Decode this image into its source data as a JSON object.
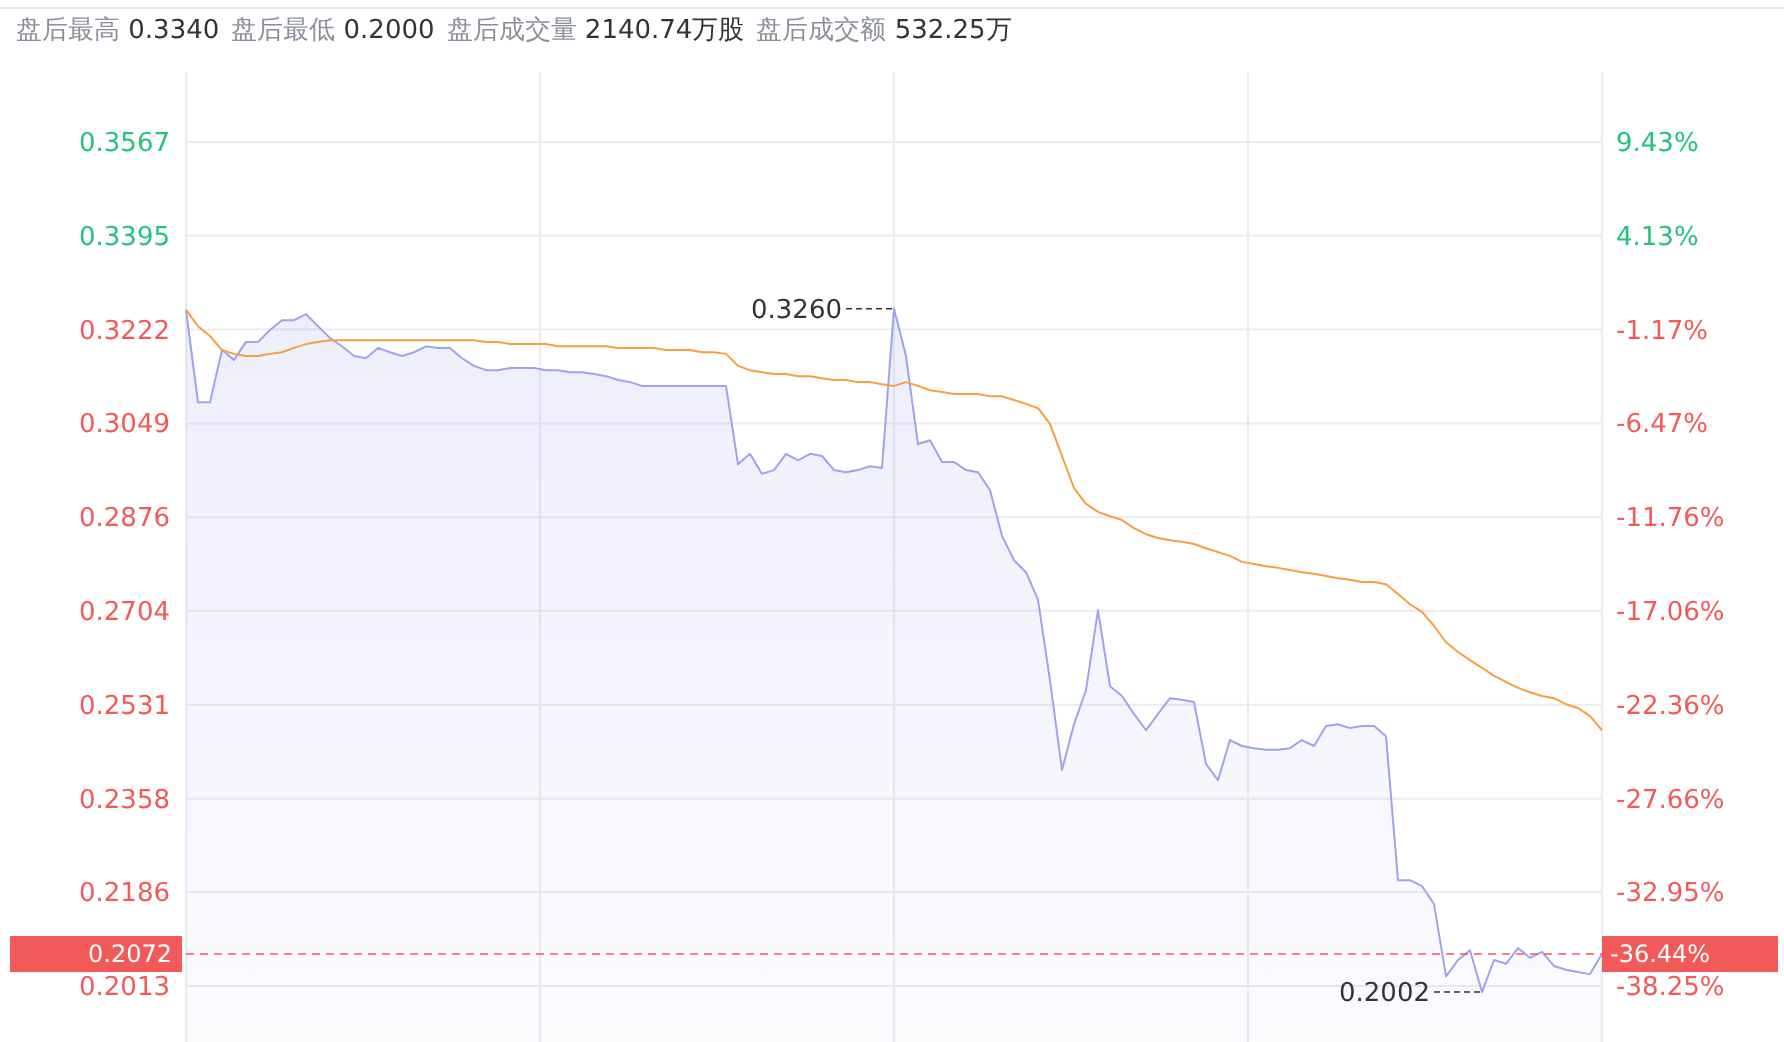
{
  "chart_data": {
    "type": "line",
    "annotations": [
      "盘后最高 0.3340",
      "盘后最低 0.2000",
      "盘后成交量 2140.74万股",
      "盘后成交额 532.25万",
      "0.3260",
      "0.2002",
      "-36.44%"
    ],
    "categories": [
      null,
      null,
      null,
      null,
      null,
      null,
      null,
      null,
      null,
      null,
      null,
      null,
      null,
      null,
      null,
      null,
      null,
      null,
      null,
      null,
      null,
      null,
      null,
      null,
      null,
      null,
      null,
      null,
      null,
      null,
      null,
      null,
      null,
      null,
      null,
      null,
      null,
      null,
      null,
      null,
      null,
      null,
      null,
      null,
      null,
      null,
      null,
      null,
      null,
      null,
      null,
      null,
      null,
      null,
      null,
      null,
      null,
      null,
      null,
      null,
      null,
      null,
      null,
      null,
      null,
      null,
      null,
      null,
      null,
      null,
      null,
      null,
      null,
      null,
      null,
      null,
      null,
      null,
      null,
      null,
      null,
      null,
      null,
      null,
      null,
      null,
      null,
      null,
      null,
      null,
      null,
      null,
      null,
      null,
      null,
      null,
      null,
      null,
      null,
      null,
      null,
      null,
      null,
      null,
      null,
      null,
      null,
      null,
      null,
      null,
      null,
      null,
      null,
      null,
      null,
      null,
      null,
      null,
      null
    ],
    "series": [
      {
        "type": "area",
        "color": "#9ea3ec",
        "values": [
          0.3258,
          0.3088,
          0.3088,
          0.3184,
          0.3166,
          0.3199,
          0.3199,
          0.3221,
          0.3239,
          0.3239,
          0.325,
          0.3228,
          0.3206,
          0.3191,
          0.3173,
          0.3169,
          0.3188,
          0.318,
          0.3173,
          0.318,
          0.3191,
          0.3188,
          0.3188,
          0.3169,
          0.3155,
          0.3147,
          0.3147,
          0.3151,
          0.3151,
          0.3151,
          0.3147,
          0.3147,
          0.3143,
          0.3143,
          0.314,
          0.3136,
          0.3129,
          0.3125,
          0.3118,
          0.3118,
          0.3118,
          0.3118,
          0.3118,
          0.3118,
          0.3118,
          0.3118,
          0.2974,
          0.2993,
          0.2956,
          0.2963,
          0.2993,
          0.2981,
          0.2993,
          0.2989,
          0.2963,
          0.2959,
          0.2963,
          0.297,
          0.2967,
          0.326,
          0.3173,
          0.3011,
          0.3018,
          0.2978,
          0.2978,
          0.2963,
          0.2959,
          0.2926,
          0.2842,
          0.2797,
          0.2775,
          0.2724,
          0.2576,
          0.2411,
          0.2495,
          0.2558,
          0.2705,
          0.2565,
          0.2547,
          0.2514,
          0.2484,
          0.2514,
          0.2543,
          0.254,
          0.2536,
          0.2422,
          0.2392,
          0.2466,
          0.2455,
          0.2451,
          0.2448,
          0.2448,
          0.2451,
          0.2466,
          0.2455,
          0.2492,
          0.2495,
          0.2488,
          0.2492,
          0.2492,
          0.2473,
          0.2208,
          0.2208,
          0.2197,
          0.2164,
          0.2031,
          0.2061,
          0.2079,
          0.2002,
          0.2061,
          0.2054,
          0.2083,
          0.2065,
          0.2076,
          0.205,
          0.2043,
          0.2039,
          0.2035,
          0.2072
        ]
      },
      {
        "type": "line",
        "color": "#f5a040",
        "values": [
          0.3258,
          0.3228,
          0.321,
          0.3184,
          0.3177,
          0.3173,
          0.3173,
          0.3177,
          0.318,
          0.3188,
          0.3195,
          0.3199,
          0.3202,
          0.3202,
          0.3202,
          0.3202,
          0.3202,
          0.3202,
          0.3202,
          0.3202,
          0.3202,
          0.3202,
          0.3202,
          0.3202,
          0.3202,
          0.3199,
          0.3199,
          0.3195,
          0.3195,
          0.3195,
          0.3195,
          0.3191,
          0.3191,
          0.3191,
          0.3191,
          0.3191,
          0.3188,
          0.3188,
          0.3188,
          0.3188,
          0.3184,
          0.3184,
          0.3184,
          0.318,
          0.318,
          0.3177,
          0.3155,
          0.3147,
          0.3143,
          0.314,
          0.314,
          0.3136,
          0.3136,
          0.3132,
          0.3129,
          0.3129,
          0.3125,
          0.3125,
          0.3121,
          0.3118,
          0.3125,
          0.3118,
          0.311,
          0.3107,
          0.3103,
          0.3103,
          0.3103,
          0.3099,
          0.3099,
          0.3092,
          0.3085,
          0.3077,
          0.3048,
          0.2989,
          0.293,
          0.2901,
          0.2886,
          0.2878,
          0.2871,
          0.2856,
          0.2845,
          0.2838,
          0.2834,
          0.2831,
          0.2827,
          0.2819,
          0.2812,
          0.2805,
          0.2794,
          0.279,
          0.2786,
          0.2783,
          0.2779,
          0.2775,
          0.2772,
          0.2768,
          0.2764,
          0.2761,
          0.2757,
          0.2757,
          0.2753,
          0.2735,
          0.2716,
          0.2702,
          0.2676,
          0.2646,
          0.2628,
          0.2613,
          0.2599,
          0.2584,
          0.2573,
          0.2562,
          0.2554,
          0.2547,
          0.2543,
          0.2532,
          0.2525,
          0.251,
          0.2484
        ]
      }
    ],
    "ylim": [
      0.191,
      0.3696
    ],
    "yticks": [
      0.3567,
      0.3395,
      0.3222,
      0.3049,
      0.2876,
      0.2704,
      0.2531,
      0.2358,
      0.2186,
      0.2013
    ],
    "y2lim": [
      -41.41,
      13.37
    ],
    "y2ticks": [
      {
        "value": 9.43,
        "label": "9.43%"
      },
      {
        "value": 4.13,
        "label": "4.13%"
      },
      {
        "value": -1.17,
        "label": "-1.17%"
      },
      {
        "value": -6.47,
        "label": "-6.47%"
      },
      {
        "value": -11.76,
        "label": "-11.76%"
      },
      {
        "value": -17.06,
        "label": "-17.06%"
      },
      {
        "value": -22.36,
        "label": "-22.36%"
      },
      {
        "value": -27.66,
        "label": "-27.66%"
      },
      {
        "value": -32.95,
        "label": "-32.95%"
      },
      {
        "value": -38.25,
        "label": "-38.25%"
      }
    ],
    "ref_lines": [
      {
        "axis": "y",
        "value": 0.2072,
        "label": "0.2072",
        "color": "#f25a5a",
        "line_style": "dashed"
      }
    ],
    "grid": true,
    "line_style": "solid"
  }
}
